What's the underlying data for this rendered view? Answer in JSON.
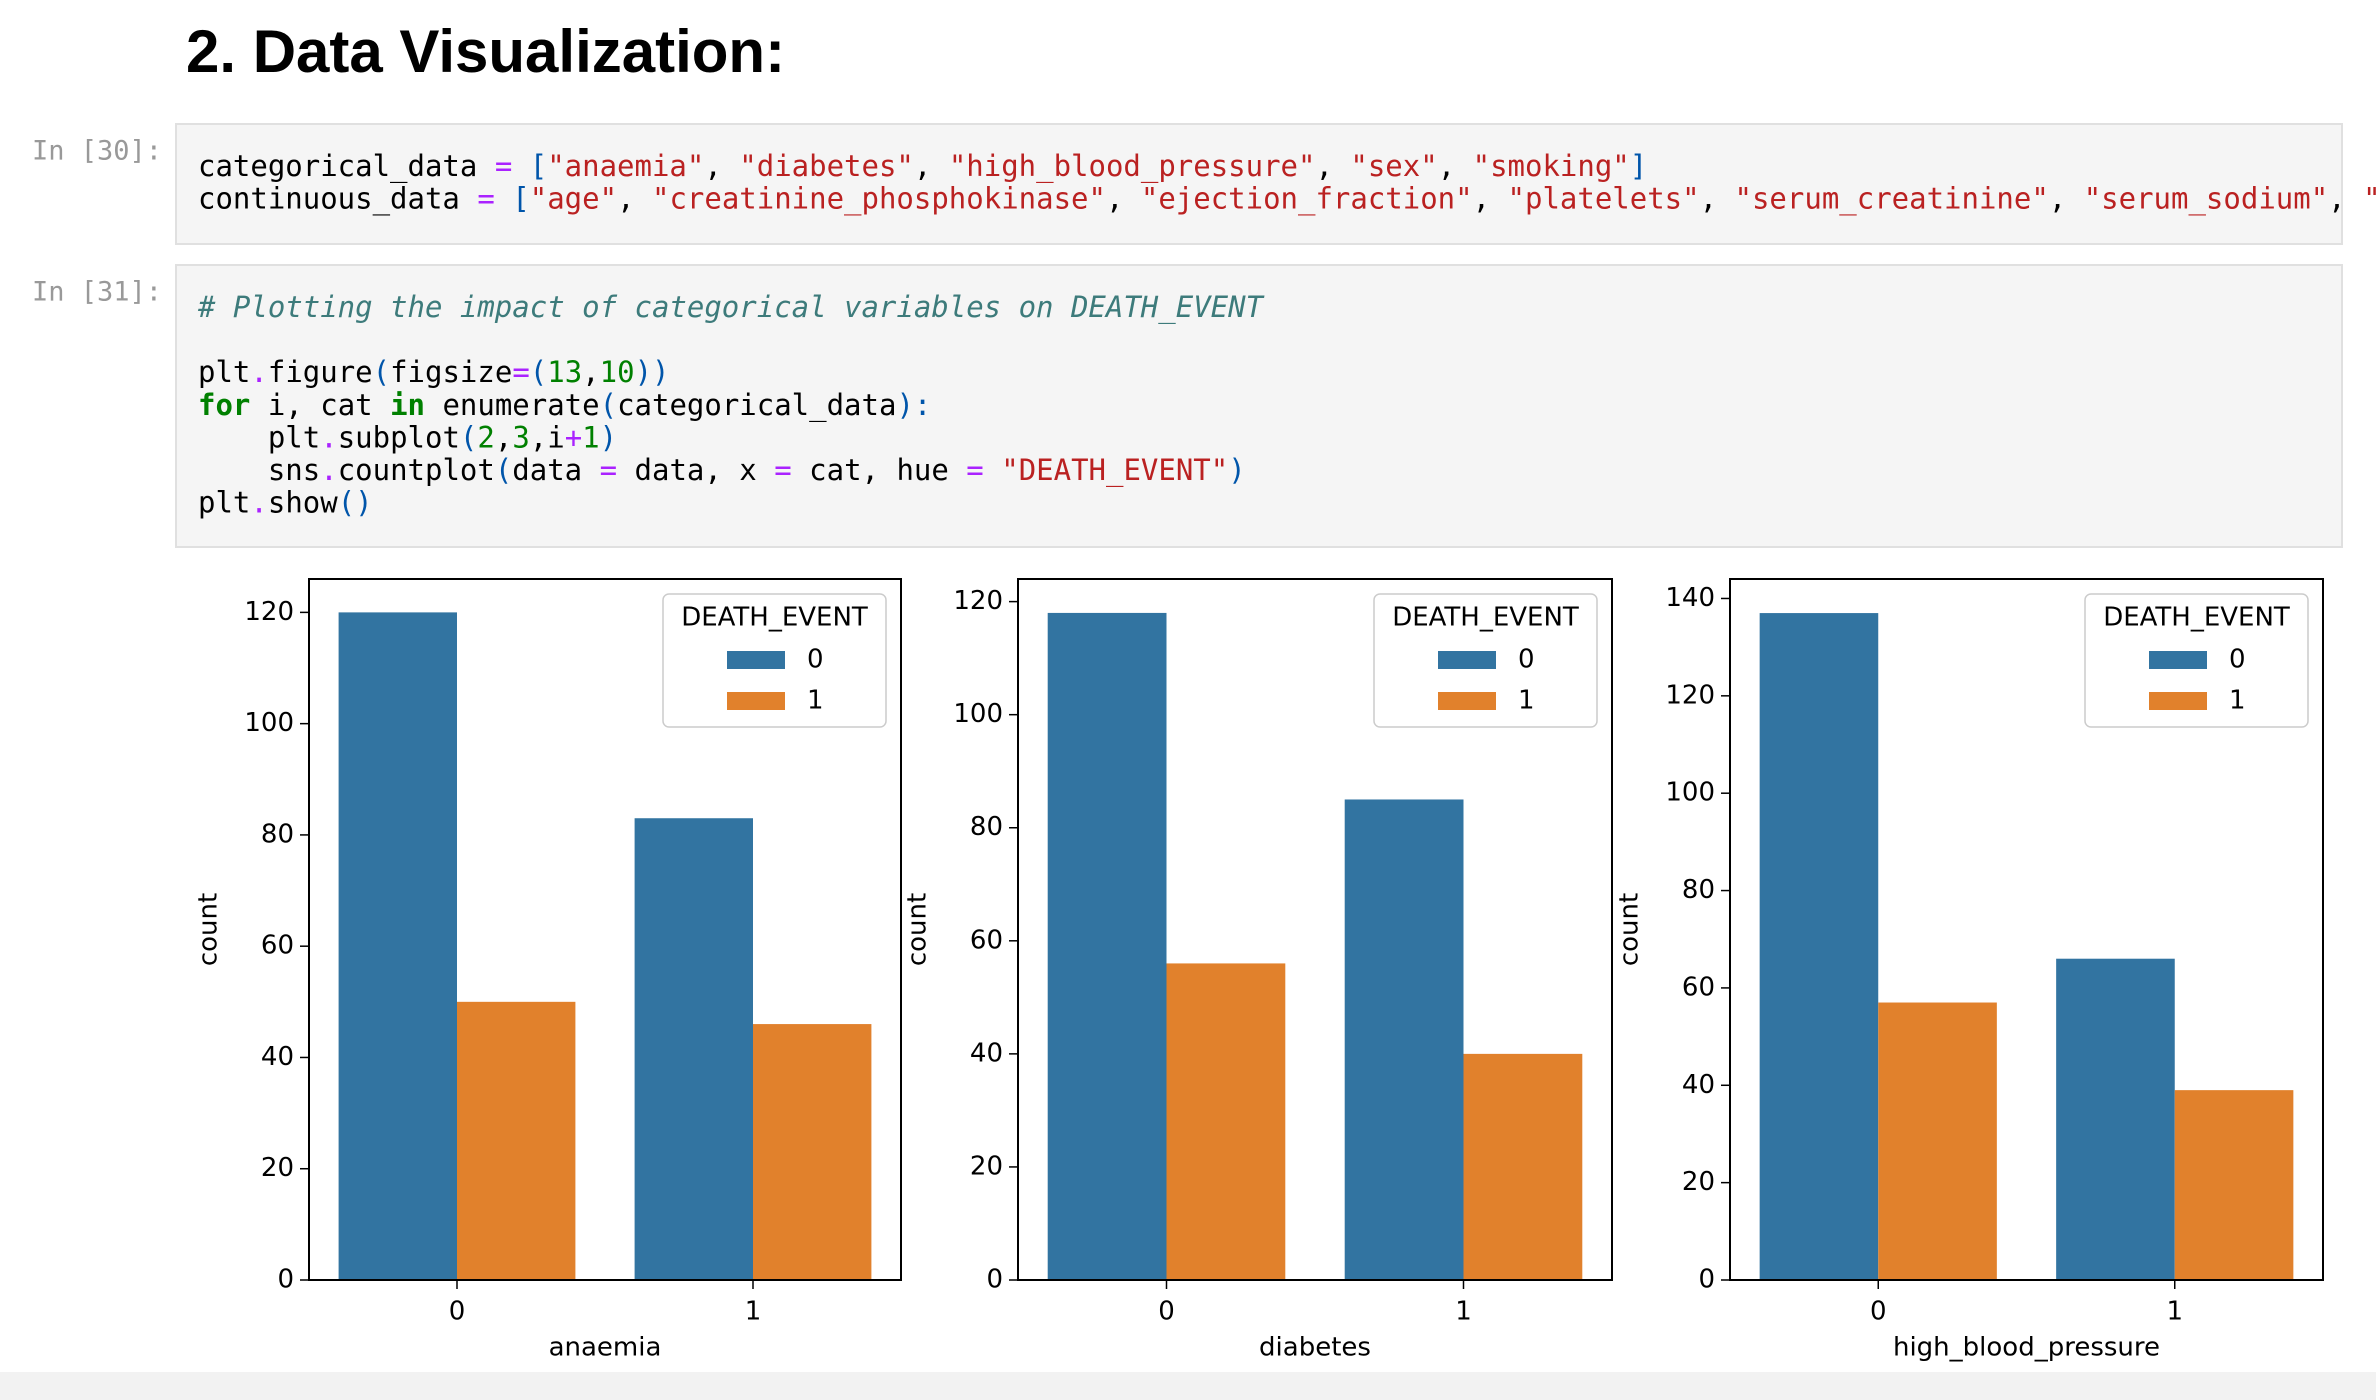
{
  "heading": "2. Data Visualization:",
  "cells": [
    {
      "prompt": "In [30]:",
      "lines": [
        [
          [
            "categorical_data ",
            "n"
          ],
          [
            "=",
            "o"
          ],
          [
            " ",
            "n"
          ],
          [
            "[",
            "p"
          ],
          [
            "\"anaemia\"",
            "s"
          ],
          [
            ", ",
            "n"
          ],
          [
            "\"diabetes\"",
            "s"
          ],
          [
            ", ",
            "n"
          ],
          [
            "\"high_blood_pressure\"",
            "s"
          ],
          [
            ", ",
            "n"
          ],
          [
            "\"sex\"",
            "s"
          ],
          [
            ", ",
            "n"
          ],
          [
            "\"smoking\"",
            "s"
          ],
          [
            "]",
            "p"
          ]
        ],
        [
          [
            "continuous_data ",
            "n"
          ],
          [
            "=",
            "o"
          ],
          [
            " ",
            "n"
          ],
          [
            "[",
            "p"
          ],
          [
            "\"age\"",
            "s"
          ],
          [
            ", ",
            "n"
          ],
          [
            "\"creatinine_phosphokinase\"",
            "s"
          ],
          [
            ", ",
            "n"
          ],
          [
            "\"ejection_fraction\"",
            "s"
          ],
          [
            ", ",
            "n"
          ],
          [
            "\"platelets\"",
            "s"
          ],
          [
            ", ",
            "n"
          ],
          [
            "\"serum_creatinine\"",
            "s"
          ],
          [
            ", ",
            "n"
          ],
          [
            "\"serum_sodium\"",
            "s"
          ],
          [
            ", ",
            "n"
          ],
          [
            "\"time\"",
            "s"
          ],
          [
            "]",
            "p"
          ]
        ]
      ]
    },
    {
      "prompt": "In [31]:",
      "lines": [
        [
          [
            "# Plotting the impact of categorical variables on DEATH_EVENT",
            "c"
          ]
        ],
        [],
        [
          [
            "plt",
            "n"
          ],
          [
            ".",
            "o"
          ],
          [
            "figure",
            "n"
          ],
          [
            "(",
            "p"
          ],
          [
            "figsize",
            "n"
          ],
          [
            "=",
            "o"
          ],
          [
            "(",
            "p"
          ],
          [
            "13",
            "m"
          ],
          [
            ",",
            "n"
          ],
          [
            "10",
            "m"
          ],
          [
            "))",
            "p"
          ]
        ],
        [
          [
            "for",
            "k"
          ],
          [
            " i, cat ",
            "n"
          ],
          [
            "in",
            "k"
          ],
          [
            " enumerate",
            "n"
          ],
          [
            "(",
            "p"
          ],
          [
            "categorical_data",
            "n"
          ],
          [
            "):",
            "p"
          ]
        ],
        [
          [
            "    plt",
            "n"
          ],
          [
            ".",
            "o"
          ],
          [
            "subplot",
            "n"
          ],
          [
            "(",
            "p"
          ],
          [
            "2",
            "m"
          ],
          [
            ",",
            "n"
          ],
          [
            "3",
            "m"
          ],
          [
            ",i",
            "n"
          ],
          [
            "+",
            "o"
          ],
          [
            "1",
            "m"
          ],
          [
            ")",
            "p"
          ]
        ],
        [
          [
            "    sns",
            "n"
          ],
          [
            ".",
            "o"
          ],
          [
            "countplot",
            "n"
          ],
          [
            "(",
            "p"
          ],
          [
            "data ",
            "n"
          ],
          [
            "=",
            "o"
          ],
          [
            " data, x ",
            "n"
          ],
          [
            "=",
            "o"
          ],
          [
            " cat, hue ",
            "n"
          ],
          [
            "=",
            "o"
          ],
          [
            " ",
            "n"
          ],
          [
            "\"DEATH_EVENT\"",
            "s"
          ],
          [
            ")",
            "p"
          ]
        ],
        [
          [
            "plt",
            "n"
          ],
          [
            ".",
            "o"
          ],
          [
            "show",
            "n"
          ],
          [
            "()",
            "p"
          ]
        ]
      ]
    }
  ],
  "chart_data": [
    {
      "type": "bar",
      "xlabel": "anaemia",
      "ylabel": "count",
      "categories": [
        "0",
        "1"
      ],
      "series": [
        {
          "name": "0",
          "color": "#3274a1",
          "values": [
            120,
            83
          ]
        },
        {
          "name": "1",
          "color": "#e1812c",
          "values": [
            50,
            46
          ]
        }
      ],
      "legend_title": "DEATH_EVENT",
      "legend": "upper right",
      "ylim": [
        0,
        126
      ],
      "yticks": [
        0,
        20,
        40,
        60,
        80,
        100,
        120
      ]
    },
    {
      "type": "bar",
      "xlabel": "diabetes",
      "ylabel": "count",
      "categories": [
        "0",
        "1"
      ],
      "series": [
        {
          "name": "0",
          "color": "#3274a1",
          "values": [
            118,
            85
          ]
        },
        {
          "name": "1",
          "color": "#e1812c",
          "values": [
            56,
            40
          ]
        }
      ],
      "legend_title": "DEATH_EVENT",
      "legend": "upper right",
      "ylim": [
        0,
        124
      ],
      "yticks": [
        0,
        20,
        40,
        60,
        80,
        100,
        120
      ]
    },
    {
      "type": "bar",
      "xlabel": "high_blood_pressure",
      "ylabel": "count",
      "categories": [
        "0",
        "1"
      ],
      "series": [
        {
          "name": "0",
          "color": "#3274a1",
          "values": [
            137,
            66
          ]
        },
        {
          "name": "1",
          "color": "#e1812c",
          "values": [
            57,
            39
          ]
        }
      ],
      "legend_title": "DEATH_EVENT",
      "legend": "upper right",
      "ylim": [
        0,
        144
      ],
      "yticks": [
        0,
        20,
        40,
        60,
        80,
        100,
        120,
        140
      ]
    }
  ]
}
